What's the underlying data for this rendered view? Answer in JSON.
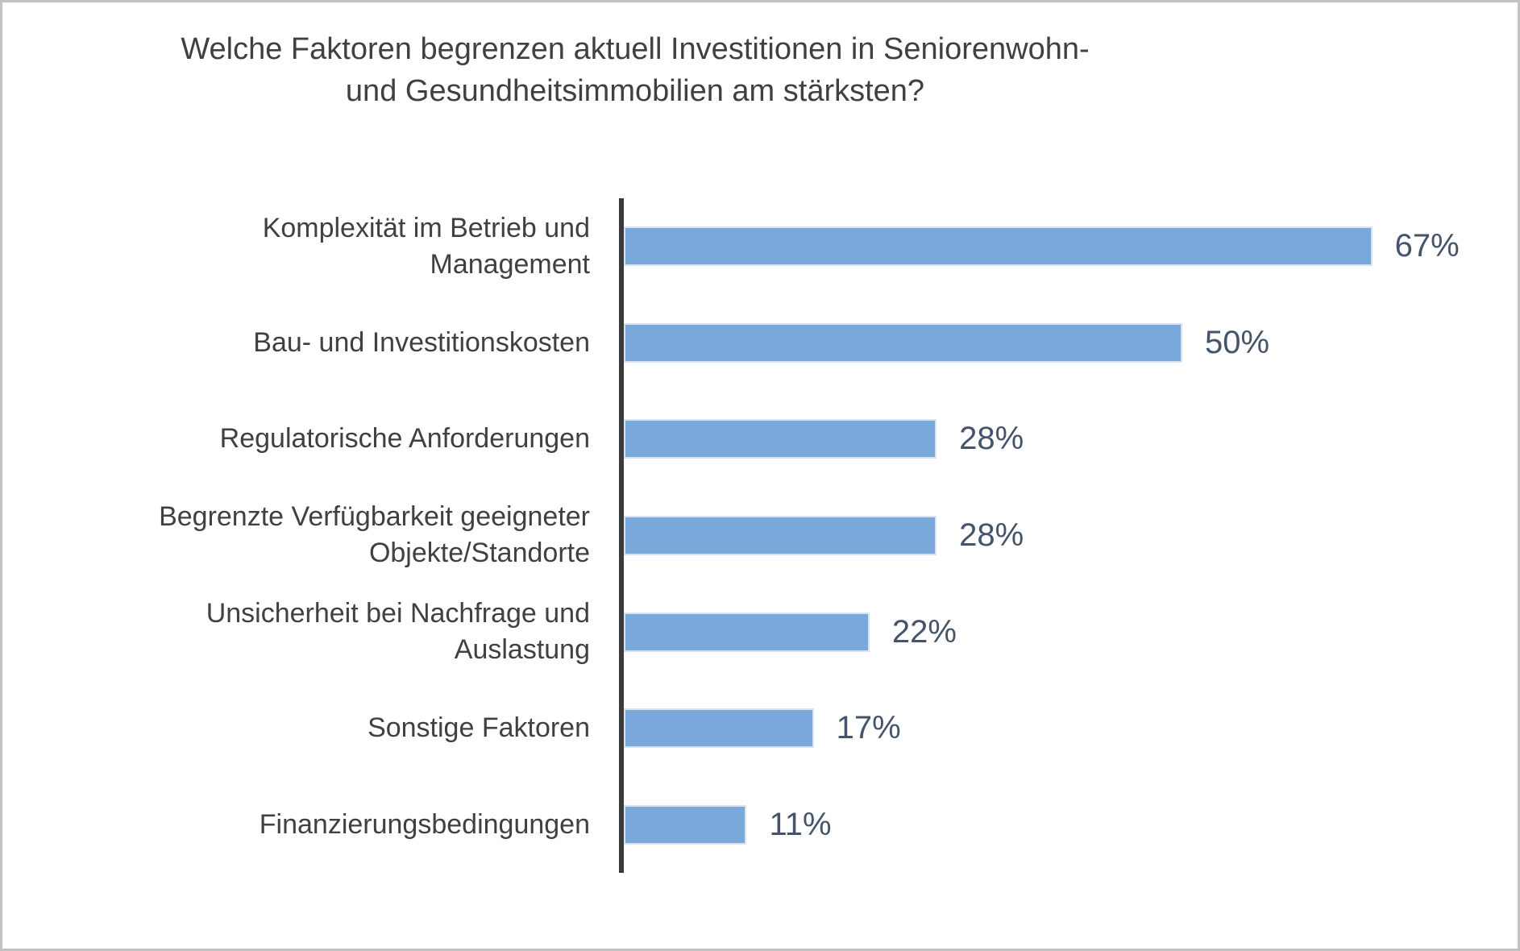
{
  "title": {
    "text": "Welche Faktoren begrenzen aktuell Investitionen in Seniorenwohn-\nund Gesundheitsimmobilien am stärksten?"
  },
  "colors": {
    "bar_fill": "#7BA8DB",
    "bar_border": "#D6E3F3",
    "axis_line": "#3A3A3A",
    "title_text": "#404040",
    "category_text": "#404040",
    "value_text": "#44546A",
    "frame_border": "#C2C2C2",
    "background": "#FFFFFF"
  },
  "chart_data": {
    "type": "bar",
    "orientation": "horizontal",
    "title": "Welche Faktoren begrenzen aktuell Investitionen in Seniorenwohn- und Gesundheitsimmobilien am stärksten?",
    "categories": [
      "Komplexität im Betrieb und Management",
      "Bau- und Investitionskosten",
      "Regulatorische Anforderungen",
      "Begrenzte Verfügbarkeit geeigneter Objekte/Standorte",
      "Unsicherheit bei Nachfrage und Auslastung",
      "Sonstige Faktoren",
      "Finanzierungsbedingungen"
    ],
    "values": [
      67,
      50,
      28,
      28,
      22,
      17,
      11
    ],
    "value_labels": [
      "67%",
      "50%",
      "28%",
      "28%",
      "22%",
      "17%",
      "11%"
    ],
    "unit": "%",
    "xlim": [
      0,
      100
    ],
    "grid": false,
    "legend": false,
    "rows": [
      {
        "label": "Komplexität im Betrieb und\nManagement",
        "value": 67,
        "pct": "67%"
      },
      {
        "label": "Bau- und Investitionskosten",
        "value": 50,
        "pct": "50%"
      },
      {
        "label": "Regulatorische Anforderungen",
        "value": 28,
        "pct": "28%"
      },
      {
        "label": "Begrenzte Verfügbarkeit geeigneter\nObjekte/Standorte",
        "value": 28,
        "pct": "28%"
      },
      {
        "label": "Unsicherheit bei Nachfrage und\nAuslastung",
        "value": 22,
        "pct": "22%"
      },
      {
        "label": "Sonstige Faktoren",
        "value": 17,
        "pct": "17%"
      },
      {
        "label": "Finanzierungsbedingungen",
        "value": 11,
        "pct": "11%"
      }
    ]
  }
}
